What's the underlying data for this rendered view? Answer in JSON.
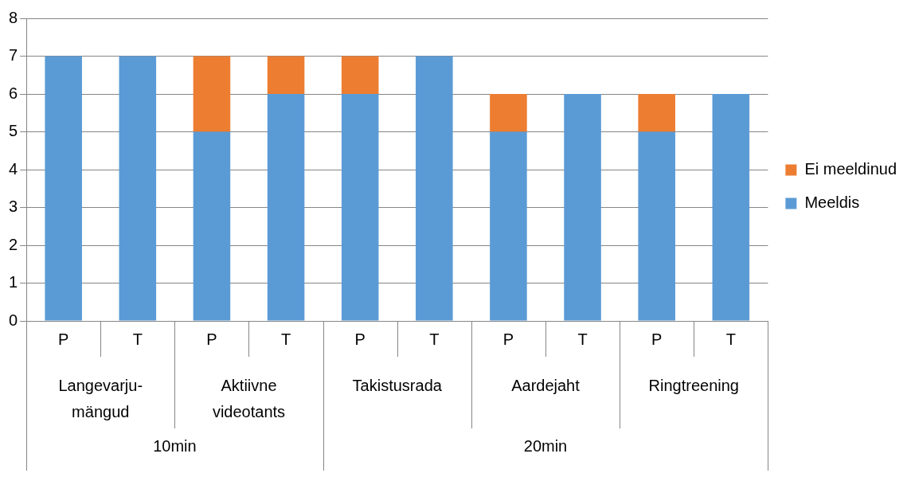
{
  "chart_data": {
    "type": "bar",
    "stacked": true,
    "categories": [
      "P",
      "T",
      "P",
      "T",
      "P",
      "T",
      "P",
      "T",
      "P",
      "T"
    ],
    "series": [
      {
        "name": "Meeldis",
        "color": "#5b9bd5",
        "values": [
          7,
          7,
          5,
          6,
          6,
          7,
          5,
          6,
          5,
          6
        ]
      },
      {
        "name": "Ei meeldinud",
        "color": "#ed7d31",
        "values": [
          0,
          0,
          2,
          1,
          1,
          0,
          1,
          0,
          1,
          0
        ]
      }
    ],
    "ylim": [
      0,
      8
    ],
    "yticks": [
      0,
      1,
      2,
      3,
      4,
      5,
      6,
      7,
      8
    ],
    "grid": "y",
    "legend": "right",
    "annotations": [
      "Langevarju-mängud",
      "Aktiivne videotants",
      "Takistusrada",
      "Aardejaht",
      "Ringtreening",
      "10min",
      "20min"
    ]
  }
}
